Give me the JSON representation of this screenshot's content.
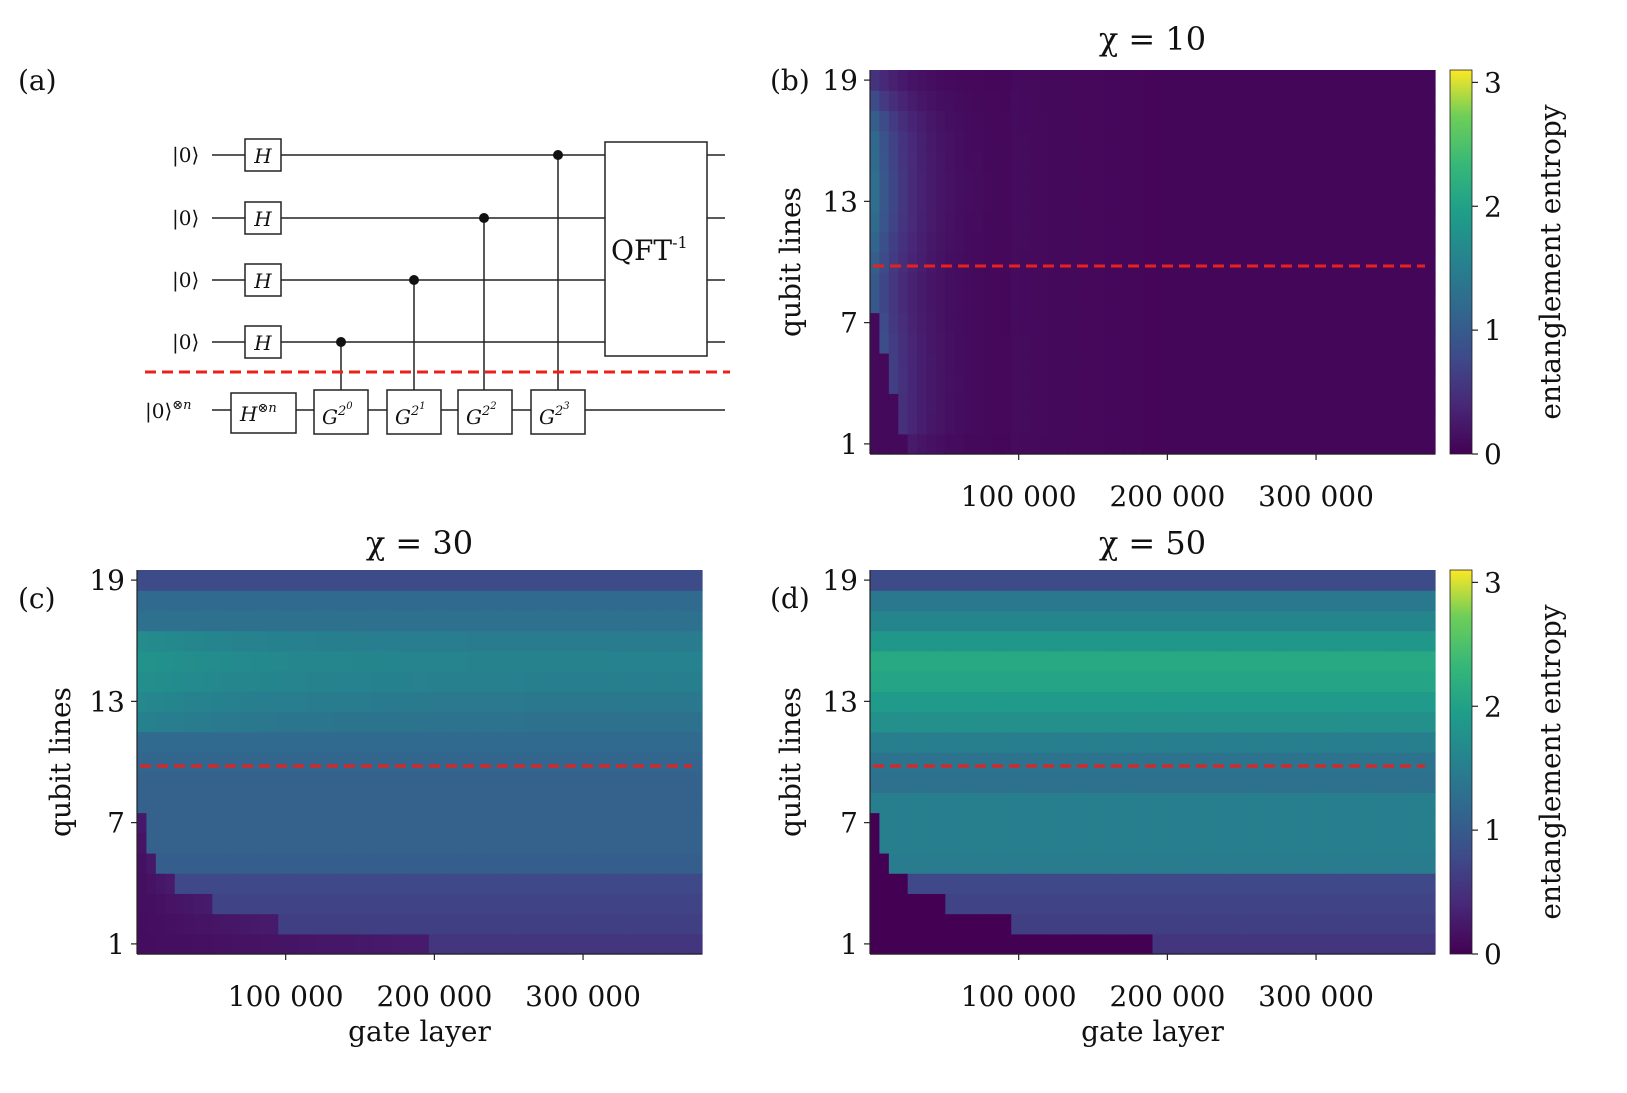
{
  "panel_labels": {
    "a": "(a)",
    "b": "(b)",
    "c": "(c)",
    "d": "(d)"
  },
  "circuit": {
    "ket_labels": [
      "|0⟩",
      "|0⟩",
      "|0⟩",
      "|0⟩"
    ],
    "register_label": "|0⟩",
    "register_sup": "⊗n",
    "hadamard": "H",
    "hadamard_n": "H",
    "hadamard_n_sup": "⊗n",
    "g_base": "G",
    "g_base_sup": "2",
    "g_exponents": [
      "0",
      "1",
      "2",
      "3"
    ],
    "qft_label": "QFT",
    "qft_sup": "-1"
  },
  "colorbar": {
    "label": "entanglement entropy",
    "ticks": [
      "0",
      "1",
      "2",
      "3"
    ],
    "min": 0,
    "max": 3.1
  },
  "colors": {
    "divider": "#e8211c",
    "wire": "#222222"
  },
  "chart_data": [
    {
      "type": "heatmap",
      "panel": "b",
      "title": "χ = 10",
      "xlabel": "",
      "ylabel": "qubit lines",
      "xticks": [
        100000,
        200000,
        300000
      ],
      "xtick_labels": [
        "100 000",
        "200 000",
        "300 000"
      ],
      "yticks": [
        1,
        7,
        13,
        19
      ],
      "ytick_labels": [
        "1",
        "7",
        "13",
        "19"
      ],
      "xlim": [
        0,
        380000
      ],
      "ylim": [
        1,
        20
      ],
      "divider_qubit": 9.8,
      "bond_lines_end_entropy": [
        0.05,
        0.05,
        0.05,
        0.05,
        0.05,
        0.05,
        0.05,
        0.05,
        0.05,
        0.05,
        0.05,
        0.05,
        0.05,
        0.05,
        0.05,
        0.05,
        0.05,
        0.05,
        0.05
      ],
      "bond_lines_peak_entropy": [
        0.3,
        0.5,
        0.6,
        0.7,
        0.8,
        0.9,
        1.0,
        1.1,
        1.1,
        1.2,
        1.3,
        1.4,
        1.45,
        1.45,
        1.4,
        1.35,
        1.2,
        0.9,
        0.6
      ]
    },
    {
      "type": "heatmap",
      "panel": "c",
      "title": "χ = 30",
      "xlabel": "gate layer",
      "ylabel": "qubit lines",
      "xticks": [
        100000,
        200000,
        300000
      ],
      "xtick_labels": [
        "100 000",
        "200 000",
        "300 000"
      ],
      "yticks": [
        1,
        7,
        13,
        19
      ],
      "ytick_labels": [
        "1",
        "7",
        "13",
        "19"
      ],
      "xlim": [
        0,
        380000
      ],
      "ylim": [
        1,
        20
      ],
      "divider_qubit": 9.8,
      "bond_lines_entropy": [
        0.55,
        0.65,
        0.7,
        0.75,
        1.05,
        1.1,
        1.1,
        1.1,
        1.1,
        1.15,
        1.2,
        1.3,
        1.4,
        1.5,
        1.55,
        1.45,
        1.3,
        1.2,
        0.8
      ],
      "onset_layers": [
        195000,
        95000,
        48000,
        24000,
        12000,
        7000,
        4000,
        2000,
        1000,
        0,
        0,
        0,
        0,
        0,
        0,
        0,
        0,
        0,
        0
      ]
    },
    {
      "type": "heatmap",
      "panel": "d",
      "title": "χ = 50",
      "xlabel": "gate layer",
      "ylabel": "qubit lines",
      "xticks": [
        100000,
        200000,
        300000
      ],
      "xtick_labels": [
        "100 000",
        "200 000",
        "300 000"
      ],
      "yticks": [
        1,
        7,
        13,
        19
      ],
      "ytick_labels": [
        "1",
        "7",
        "13",
        "19"
      ],
      "xlim": [
        0,
        380000
      ],
      "ylim": [
        1,
        20
      ],
      "divider_qubit": 9.8,
      "bond_lines_entropy": [
        0.55,
        0.65,
        0.7,
        0.75,
        1.45,
        1.5,
        1.5,
        1.5,
        1.3,
        1.35,
        1.5,
        1.75,
        1.9,
        2.05,
        2.1,
        1.85,
        1.6,
        1.4,
        0.8
      ],
      "onset_layers": [
        190000,
        95000,
        48000,
        24000,
        12000,
        7000,
        4000,
        2000,
        1000,
        0,
        0,
        0,
        0,
        0,
        0,
        0,
        0,
        0,
        0
      ]
    }
  ]
}
